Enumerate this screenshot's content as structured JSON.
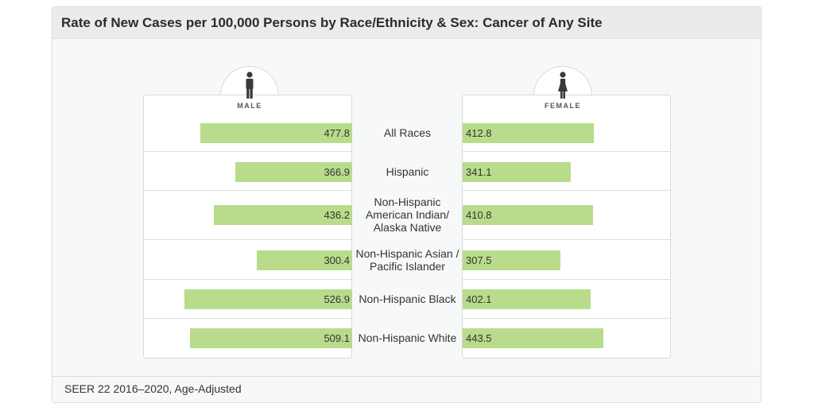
{
  "title": "Rate of New Cases per 100,000 Persons by Race/Ethnicity & Sex: Cancer of Any Site",
  "footnote": "SEER 22 2016–2020, Age-Adjusted",
  "colors": {
    "bar": "#b8dc8b",
    "header": "#ebebeb",
    "background": "#f6f9f7"
  },
  "chart_data": {
    "type": "bar",
    "orientation": "horizontal-butterfly",
    "title": "Rate of New Cases per 100,000 Persons by Race/Ethnicity & Sex: Cancer of Any Site",
    "categories": [
      "All Races",
      "Hispanic",
      "Non-Hispanic American Indian/ Alaska Native",
      "Non-Hispanic Asian / Pacific Islander",
      "Non-Hispanic Black",
      "Non-Hispanic White"
    ],
    "series": [
      {
        "name": "MALE",
        "icon": "male-icon",
        "values": [
          477.8,
          366.9,
          436.2,
          300.4,
          526.9,
          509.1
        ]
      },
      {
        "name": "FEMALE",
        "icon": "female-icon",
        "values": [
          412.8,
          341.1,
          410.8,
          307.5,
          402.1,
          443.5
        ]
      }
    ],
    "legend": "panel-headers",
    "grid": false
  }
}
